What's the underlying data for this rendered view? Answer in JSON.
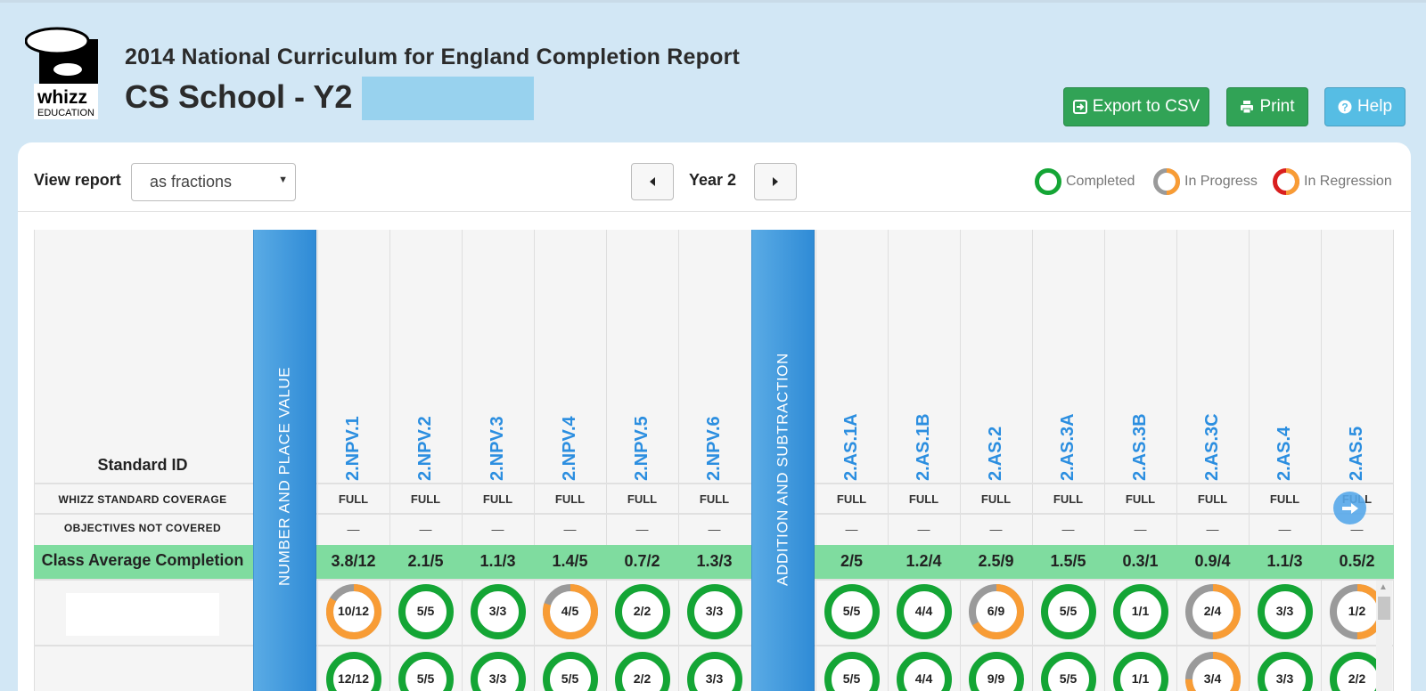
{
  "header": {
    "logo_text": "whizz",
    "logo_subtext": "EDUCATION",
    "title": "2014 National Curriculum for England Completion Report",
    "subtitle": "CS School - Y2 -"
  },
  "actions": {
    "export_label": "Export to CSV",
    "print_label": "Print",
    "help_label": "Help"
  },
  "controls": {
    "view_label": "View report",
    "view_value": "as fractions",
    "year_label": "Year 2"
  },
  "legend": {
    "completed": "Completed",
    "in_progress": "In Progress",
    "in_regression": "In Regression"
  },
  "colors": {
    "completed": "#14a535",
    "in_progress": "#f89c35",
    "in_regression": "#d91f1f",
    "ring_grey": "#9a9a9a",
    "strand_blue": "#2f8bd6",
    "average_row": "#7fdc9f"
  },
  "table": {
    "standard_id_header": "Standard ID",
    "coverage_label": "WHIZZ STANDARD COVERAGE",
    "objectives_label": "OBJECTIVES NOT COVERED",
    "average_label": "Class Average Completion",
    "strands": [
      "NUMBER AND PLACE VALUE",
      "ADDITION AND SUBTRACTION"
    ],
    "columns": [
      {
        "id": "2.NPV.1",
        "coverage": "FULL",
        "not_covered": "—",
        "average": "3.8/12"
      },
      {
        "id": "2.NPV.2",
        "coverage": "FULL",
        "not_covered": "—",
        "average": "2.1/5"
      },
      {
        "id": "2.NPV.3",
        "coverage": "FULL",
        "not_covered": "—",
        "average": "1.1/3"
      },
      {
        "id": "2.NPV.4",
        "coverage": "FULL",
        "not_covered": "—",
        "average": "1.4/5"
      },
      {
        "id": "2.NPV.5",
        "coverage": "FULL",
        "not_covered": "—",
        "average": "0.7/2"
      },
      {
        "id": "2.NPV.6",
        "coverage": "FULL",
        "not_covered": "—",
        "average": "1.3/3"
      },
      {
        "id": "2.AS.1A",
        "coverage": "FULL",
        "not_covered": "—",
        "average": "2/5"
      },
      {
        "id": "2.AS.1B",
        "coverage": "FULL",
        "not_covered": "—",
        "average": "1.2/4"
      },
      {
        "id": "2.AS.2",
        "coverage": "FULL",
        "not_covered": "—",
        "average": "2.5/9"
      },
      {
        "id": "2.AS.3A",
        "coverage": "FULL",
        "not_covered": "—",
        "average": "1.5/5"
      },
      {
        "id": "2.AS.3B",
        "coverage": "FULL",
        "not_covered": "—",
        "average": "0.3/1"
      },
      {
        "id": "2.AS.3C",
        "coverage": "FULL",
        "not_covered": "—",
        "average": "0.9/4"
      },
      {
        "id": "2.AS.4",
        "coverage": "FULL",
        "not_covered": "—",
        "average": "1.1/3"
      },
      {
        "id": "2.AS.5",
        "coverage": "FULL",
        "not_covered": "—",
        "average": "0.5/2"
      }
    ],
    "students": [
      {
        "cells": [
          {
            "text": "10/12",
            "status": "in_progress",
            "fraction": 0.8333
          },
          {
            "text": "5/5",
            "status": "completed",
            "fraction": 1
          },
          {
            "text": "3/3",
            "status": "completed",
            "fraction": 1
          },
          {
            "text": "4/5",
            "status": "in_progress",
            "fraction": 0.8
          },
          {
            "text": "2/2",
            "status": "completed",
            "fraction": 1
          },
          {
            "text": "3/3",
            "status": "completed",
            "fraction": 1
          },
          {
            "text": "5/5",
            "status": "completed",
            "fraction": 1
          },
          {
            "text": "4/4",
            "status": "completed",
            "fraction": 1
          },
          {
            "text": "6/9",
            "status": "in_progress",
            "fraction": 0.6667
          },
          {
            "text": "5/5",
            "status": "completed",
            "fraction": 1
          },
          {
            "text": "1/1",
            "status": "completed",
            "fraction": 1
          },
          {
            "text": "2/4",
            "status": "in_progress",
            "fraction": 0.5
          },
          {
            "text": "3/3",
            "status": "completed",
            "fraction": 1
          },
          {
            "text": "1/2",
            "status": "in_progress",
            "fraction": 0.5
          }
        ]
      },
      {
        "cells": [
          {
            "text": "12/12",
            "status": "completed",
            "fraction": 1
          },
          {
            "text": "5/5",
            "status": "completed",
            "fraction": 1
          },
          {
            "text": "3/3",
            "status": "completed",
            "fraction": 1
          },
          {
            "text": "5/5",
            "status": "completed",
            "fraction": 1
          },
          {
            "text": "2/2",
            "status": "completed",
            "fraction": 1
          },
          {
            "text": "3/3",
            "status": "completed",
            "fraction": 1
          },
          {
            "text": "5/5",
            "status": "completed",
            "fraction": 1
          },
          {
            "text": "4/4",
            "status": "completed",
            "fraction": 1
          },
          {
            "text": "9/9",
            "status": "completed",
            "fraction": 1
          },
          {
            "text": "5/5",
            "status": "completed",
            "fraction": 1
          },
          {
            "text": "1/1",
            "status": "completed",
            "fraction": 1
          },
          {
            "text": "3/4",
            "status": "in_progress",
            "fraction": 0.75
          },
          {
            "text": "3/3",
            "status": "completed",
            "fraction": 1
          },
          {
            "text": "2/2",
            "status": "completed",
            "fraction": 1
          }
        ]
      }
    ]
  }
}
